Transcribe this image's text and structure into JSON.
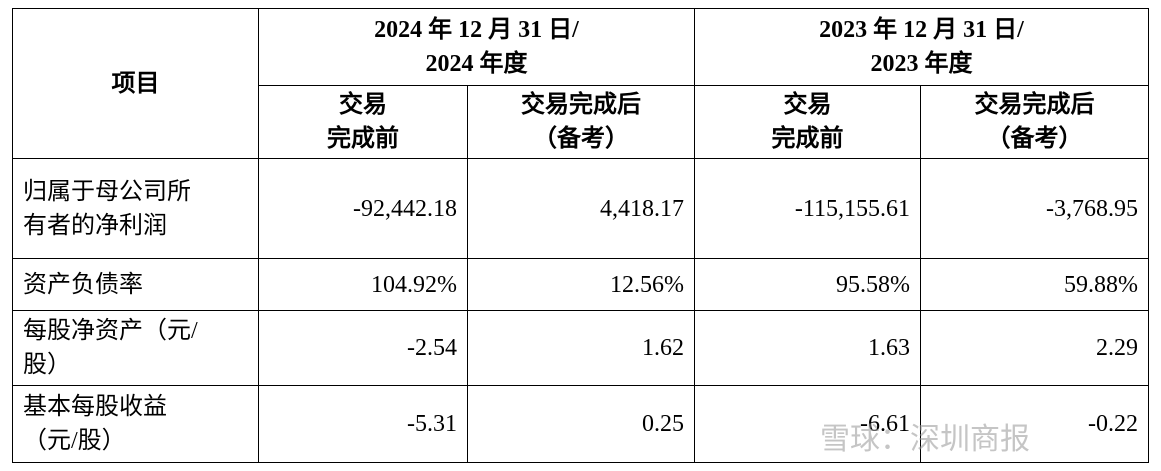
{
  "table": {
    "header": {
      "item": "项目",
      "periods": [
        {
          "label": "2024 年 12 月 31 日/\n2024 年度",
          "columns": [
            "交易\n完成前",
            "交易完成后\n（备考）"
          ]
        },
        {
          "label": "2023 年 12 月 31 日/\n2023 年度",
          "columns": [
            "交易\n完成前",
            "交易完成后\n（备考）"
          ]
        }
      ]
    },
    "rows": [
      {
        "label": "归属于母公司所\n有者的净利润",
        "values": [
          "-92,442.18",
          "4,418.17",
          "-115,155.61",
          "-3,768.95"
        ]
      },
      {
        "label": "资产负债率",
        "values": [
          "104.92%",
          "12.56%",
          "95.58%",
          "59.88%"
        ]
      },
      {
        "label": "每股净资产（元/\n股）",
        "values": [
          "-2.54",
          "1.62",
          "1.63",
          "2.29"
        ]
      },
      {
        "label": "基本每股收益\n（元/股）",
        "values": [
          "-5.31",
          "0.25",
          "-6.61",
          "-0.22"
        ]
      }
    ]
  },
  "watermark": "雪球：深圳商报"
}
